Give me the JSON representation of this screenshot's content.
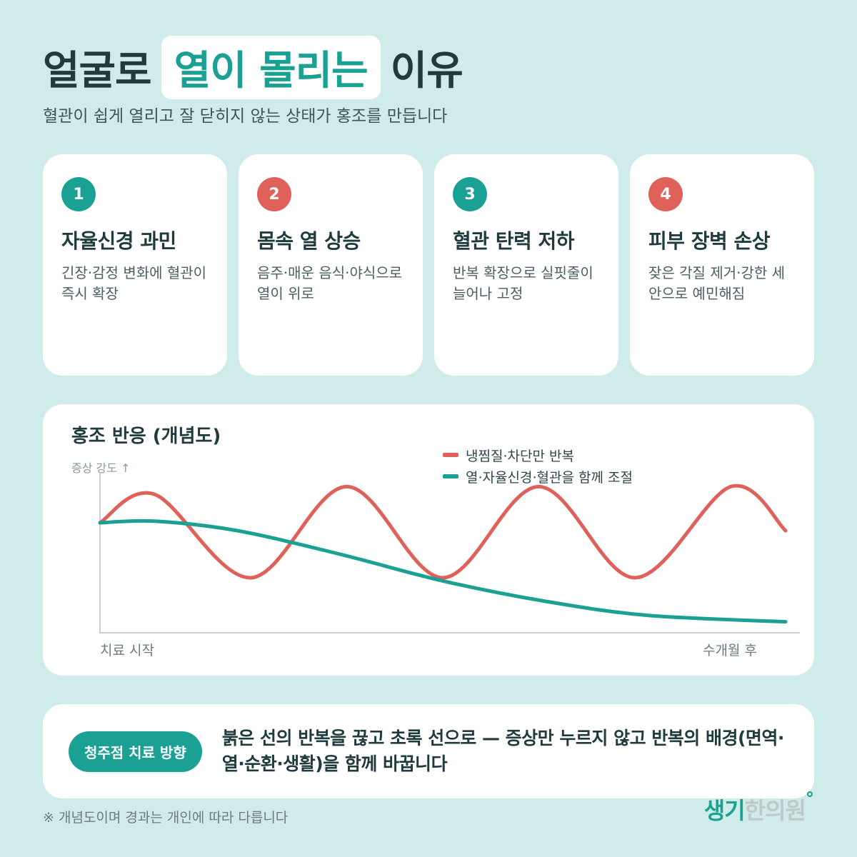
{
  "header": {
    "title_before": "얼굴로",
    "title_highlight": "열이 몰리는",
    "title_after": "이유",
    "subtitle": "혈관이 쉽게 열리고 잘 닫히지 않는 상태가 홍조를 만듭니다"
  },
  "cards": [
    {
      "number": "1",
      "title": "자율신경 과민",
      "desc": "긴장·감정 변화에 혈관이 즉시 확장",
      "color": "#1aa193"
    },
    {
      "number": "2",
      "title": "몸속 열 상승",
      "desc": "음주·매운 음식·야식으로 열이 위로",
      "color": "#e0605a"
    },
    {
      "number": "3",
      "title": "혈관 탄력 저하",
      "desc": "반복 확장으로 실핏줄이 늘어나 고정",
      "color": "#1aa193"
    },
    {
      "number": "4",
      "title": "피부 장벽 손상",
      "desc": "잦은 각질 제거·강한 세안으로 예민해짐",
      "color": "#e0605a"
    }
  ],
  "chart": {
    "title": "홍조 반응 (개념도)",
    "ylabel": "증상 강도 ↑",
    "x_start": "치료 시작",
    "x_end": "수개월 후",
    "legend": [
      {
        "label": "냉찜질·차단만 반복",
        "color": "#e0605a"
      },
      {
        "label": "열·자율신경·혈관을 함께 조절",
        "color": "#1aa193"
      }
    ]
  },
  "chart_data": {
    "type": "line",
    "title": "홍조 반응 (개념도)",
    "ylabel": "증상 강도 ↑",
    "x_ticks": [
      "치료 시작",
      "수개월 후"
    ],
    "ylim": [
      0,
      1
    ],
    "series": [
      {
        "name": "냉찜질·차단만 반복",
        "color": "#e0605a",
        "x": [
          0,
          0.08,
          0.22,
          0.36,
          0.5,
          0.64,
          0.78,
          0.92,
          1.0
        ],
        "values": [
          0.7,
          0.88,
          0.35,
          0.93,
          0.35,
          0.93,
          0.35,
          0.93,
          0.65
        ]
      },
      {
        "name": "열·자율신경·혈관을 함께 조절",
        "color": "#1aa193",
        "x": [
          0,
          0.08,
          0.2,
          0.35,
          0.5,
          0.65,
          0.8,
          1.0
        ],
        "values": [
          0.7,
          0.71,
          0.65,
          0.5,
          0.33,
          0.2,
          0.11,
          0.07
        ]
      }
    ]
  },
  "bottom": {
    "pill": "청주점 치료 방향",
    "text": "붉은 선의 반복을 끊고 초록 선으로 — 증상만 누르지 않고 반복의 배경(면역·열·순환·생활)을 함께 바꿉니다"
  },
  "footnote": "※ 개념도이며 경과는 개인에 따라 다릅니다",
  "logo": {
    "green": "생기",
    "grey": "한의원"
  }
}
